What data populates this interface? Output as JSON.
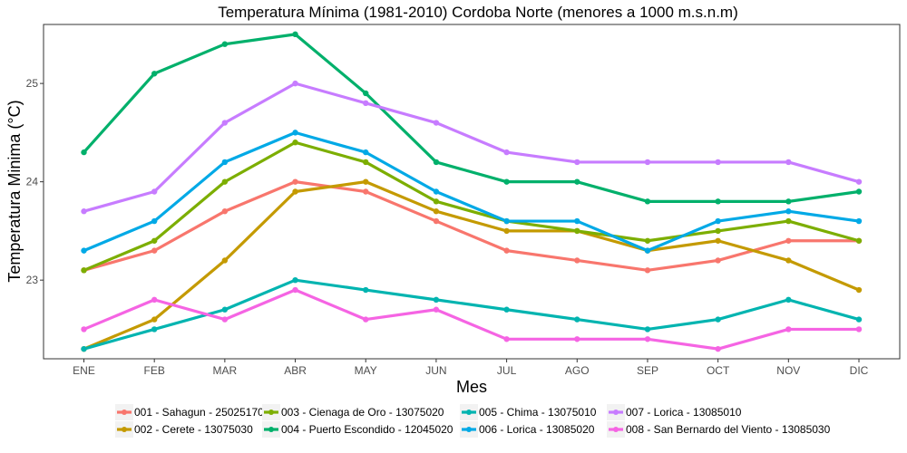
{
  "chart_data": {
    "type": "line",
    "title": "Temperatura Mínima (1981-2010) Cordoba Norte (menores a 1000 m.s.n.m)",
    "xlabel": "Mes",
    "ylabel": "Temperatura Minima (°C)",
    "categories": [
      "ENE",
      "FEB",
      "MAR",
      "ABR",
      "MAY",
      "JUN",
      "JUL",
      "AGO",
      "SEP",
      "OCT",
      "NOV",
      "DIC"
    ],
    "yticks": [
      "23",
      "24",
      "25"
    ],
    "ylim": [
      22.2,
      25.6
    ],
    "grid": false,
    "legend_position": "bottom",
    "series": [
      {
        "name": "001 - Sahagun - 25025170",
        "color": "#F8766D",
        "values": [
          23.1,
          23.3,
          23.7,
          24.0,
          23.9,
          23.6,
          23.3,
          23.2,
          23.1,
          23.2,
          23.4,
          23.4
        ]
      },
      {
        "name": "002 - Cerete - 13075030",
        "color": "#C49A00",
        "values": [
          22.3,
          22.6,
          23.2,
          23.9,
          24.0,
          23.7,
          23.5,
          23.5,
          23.3,
          23.4,
          23.2,
          22.9
        ]
      },
      {
        "name": "003 - Cienaga de Oro - 13075020",
        "color": "#7CAE00",
        "values": [
          23.1,
          23.4,
          24.0,
          24.4,
          24.2,
          23.8,
          23.6,
          23.5,
          23.4,
          23.5,
          23.6,
          23.4
        ]
      },
      {
        "name": "004 - Puerto Escondido - 12045020",
        "color": "#00B06B",
        "values": [
          24.3,
          25.1,
          25.4,
          25.5,
          24.9,
          24.2,
          24.0,
          24.0,
          23.8,
          23.8,
          23.8,
          23.9
        ]
      },
      {
        "name": "005 - Chima - 13075010",
        "color": "#00B4B0",
        "values": [
          22.3,
          22.5,
          22.7,
          23.0,
          22.9,
          22.8,
          22.7,
          22.6,
          22.5,
          22.6,
          22.8,
          22.6
        ]
      },
      {
        "name": "006 - Lorica - 13085020",
        "color": "#00A9E6",
        "values": [
          23.3,
          23.6,
          24.2,
          24.5,
          24.3,
          23.9,
          23.6,
          23.6,
          23.3,
          23.6,
          23.7,
          23.6
        ]
      },
      {
        "name": "007 - Lorica - 13085010",
        "color": "#C77CFF",
        "values": [
          23.7,
          23.9,
          24.6,
          25.0,
          24.8,
          24.6,
          24.3,
          24.2,
          24.2,
          24.2,
          24.2,
          24.0
        ]
      },
      {
        "name": "008 - San Bernardo del Viento - 13085030",
        "color": "#F564E3",
        "values": [
          22.5,
          22.8,
          22.6,
          22.9,
          22.6,
          22.7,
          22.4,
          22.4,
          22.4,
          22.3,
          22.5,
          22.5
        ]
      }
    ]
  }
}
